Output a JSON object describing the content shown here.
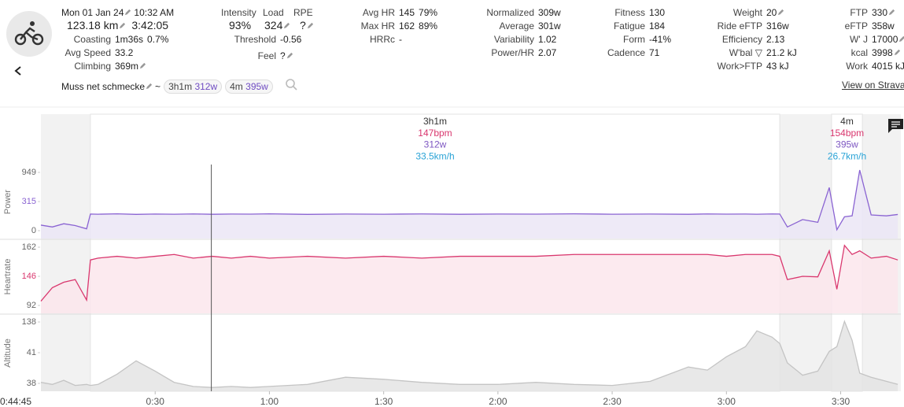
{
  "header": {
    "date": "Mon 01 Jan 24",
    "time": "10:32 AM",
    "distance": "123.18 km",
    "duration": "3:42:05",
    "left_stats": [
      {
        "label": "Coasting",
        "value": "1m36s",
        "extra": "0.7%"
      },
      {
        "label": "Avg Speed",
        "value": "33.2"
      },
      {
        "label": "Climbing",
        "value": "369m"
      }
    ],
    "top_labels": [
      "Intensity",
      "Load",
      "RPE"
    ],
    "top_values": [
      "93%",
      "324",
      "?"
    ],
    "mid_stats": [
      {
        "label": "Threshold",
        "value": "-0.56"
      },
      {
        "label": "Feel",
        "value": "?"
      }
    ],
    "columns": [
      [
        {
          "label": "Avg HR",
          "value": "145",
          "extra": "79%"
        },
        {
          "label": "Max HR",
          "value": "162",
          "extra": "89%"
        },
        {
          "label": "HRRc",
          "value": "-"
        }
      ],
      [
        {
          "label": "Normalized",
          "value": "309w"
        },
        {
          "label": "Average",
          "value": "301w"
        },
        {
          "label": "Variability",
          "value": "1.02"
        },
        {
          "label": "Power/HR",
          "value": "2.07"
        }
      ],
      [
        {
          "label": "Fitness",
          "value": "130"
        },
        {
          "label": "Fatigue",
          "value": "184"
        },
        {
          "label": "Form",
          "value": "-41%"
        },
        {
          "label": "Cadence",
          "value": "71"
        }
      ],
      [
        {
          "label": "Weight",
          "value": "20"
        },
        {
          "label": "Ride eFTP",
          "value": "316w"
        },
        {
          "label": "Efficiency",
          "value": "2.13"
        },
        {
          "label": "W'bal ▽",
          "value": "21.2 kJ"
        },
        {
          "label": "Work>FTP",
          "value": "43 kJ"
        }
      ],
      [
        {
          "label": "FTP",
          "value": "330"
        },
        {
          "label": "eFTP",
          "value": "358w"
        },
        {
          "label": "W' J",
          "value": "17000"
        },
        {
          "label": "kcal",
          "value": "3998"
        },
        {
          "label": "Work",
          "value": "4015 kJ"
        }
      ]
    ],
    "description": "Muss net schmecke",
    "tilde": "~",
    "chips": [
      {
        "duration": "3h1m",
        "power": "312w"
      },
      {
        "duration": "4m",
        "power": "395w"
      }
    ],
    "strava": "View on Strava"
  },
  "chart_data": {
    "type": "line",
    "x": [
      0,
      3,
      6,
      9,
      12,
      13,
      15,
      20,
      25,
      30,
      35,
      40,
      45,
      50,
      55,
      60,
      70,
      80,
      90,
      100,
      110,
      120,
      130,
      140,
      150,
      160,
      170,
      175,
      180,
      185,
      188,
      192,
      194,
      196,
      200,
      204,
      207,
      209,
      211,
      213,
      215,
      218,
      222,
      225
    ],
    "xlim": [
      0,
      225.8
    ],
    "xticks": [
      {
        "value": 30,
        "label": "0:30"
      },
      {
        "value": 60,
        "label": "1:00"
      },
      {
        "value": 90,
        "label": "1:30"
      },
      {
        "value": 120,
        "label": "2:00"
      },
      {
        "value": 150,
        "label": "2:30"
      },
      {
        "value": 180,
        "label": "3:00"
      },
      {
        "value": 210,
        "label": "3:30"
      }
    ],
    "cursor": {
      "value": 44.75,
      "label": "0:44:45"
    },
    "intervals": [
      {
        "label": "3h1m",
        "hr": "147bpm",
        "power": "312w",
        "speed": "33.5km/h",
        "start": 13,
        "end": 194
      },
      {
        "label": "4m",
        "hr": "154bpm",
        "power": "395w",
        "speed": "26.7km/h",
        "start": 207.6,
        "end": 215.7
      }
    ],
    "panels": [
      {
        "name": "Power",
        "color": "#8a63d2",
        "fill": "#ebe6f6",
        "yticks": [
          0,
          315,
          949
        ],
        "values": [
          60,
          40,
          75,
          55,
          20,
          180,
          178,
          182,
          176,
          180,
          178,
          181,
          177,
          180,
          179,
          182,
          176,
          180,
          178,
          181,
          177,
          180,
          179,
          182,
          178,
          180,
          177,
          181,
          179,
          180,
          178,
          181,
          180,
          40,
          120,
          90,
          620,
          10,
          150,
          160,
          1000,
          170,
          160,
          175
        ]
      },
      {
        "name": "Heartrate",
        "color": "#d9376e",
        "fill": "#fbe6ec",
        "yticks": [
          92,
          146,
          162
        ],
        "values": [
          100,
          125,
          135,
          140,
          102,
          155,
          156,
          157,
          156,
          157,
          158,
          156,
          157,
          156,
          157,
          156,
          157,
          156,
          157,
          156,
          157,
          157,
          157,
          158,
          158,
          158,
          158,
          158,
          157,
          158,
          158,
          158,
          157,
          140,
          146,
          145,
          160,
          122,
          163,
          158,
          160,
          156,
          157,
          155
        ]
      },
      {
        "name": "Altitude",
        "color": "#c4c4c4",
        "fill": "#e4e4e4",
        "yticks": [
          38,
          41,
          138
        ],
        "values": [
          38.1,
          37.9,
          38.3,
          37.8,
          37.9,
          37.8,
          37.9,
          38.9,
          40.2,
          39.2,
          38.1,
          37.7,
          37.6,
          37.7,
          37.6,
          37.7,
          37.9,
          38.6,
          38.4,
          38.1,
          37.9,
          37.9,
          38.1,
          37.9,
          37.8,
          38.2,
          39.6,
          39.3,
          40.6,
          60,
          110,
          90,
          70,
          40,
          38.8,
          39.2,
          45,
          60,
          140,
          80,
          39,
          38.6,
          38.2,
          37.9
        ]
      }
    ]
  }
}
